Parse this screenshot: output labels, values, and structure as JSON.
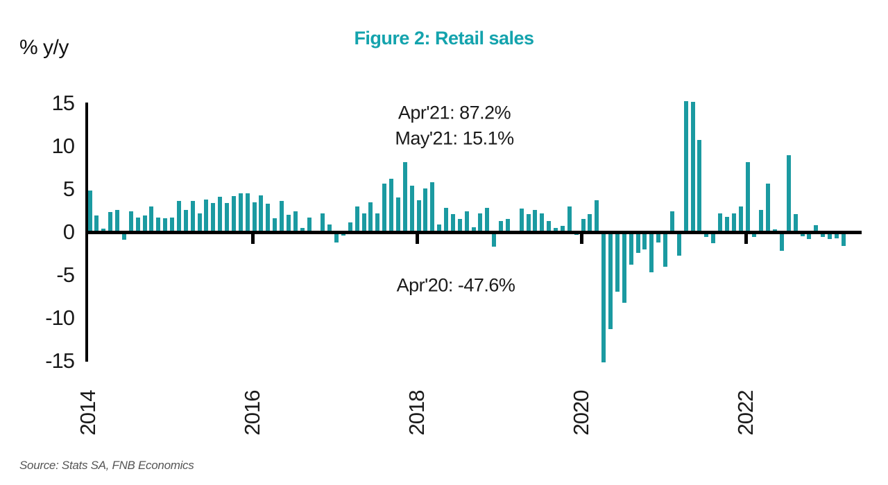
{
  "chart_data": {
    "type": "bar",
    "title": "Figure 2: Retail sales",
    "ylabel": "% y/y",
    "source": "Source: Stats SA, FNB Economics",
    "ylim": [
      -15,
      15
    ],
    "yticks": [
      15,
      10,
      5,
      0,
      -5,
      -10,
      -15
    ],
    "xticks": [
      {
        "label": "2014",
        "month_index": 0
      },
      {
        "label": "2016",
        "month_index": 24
      },
      {
        "label": "2018",
        "month_index": 48
      },
      {
        "label": "2020",
        "month_index": 72
      },
      {
        "label": "2022",
        "month_index": 96
      }
    ],
    "grid": false,
    "legend": "none",
    "bar_color": "#1b9aa1",
    "title_color": "#14a3ad",
    "axis_color": "#000000",
    "x_start": "2014-01",
    "x_end": "2023-03",
    "frequency": "monthly",
    "series": [
      {
        "name": "Retail sales % y/y",
        "values": [
          4.8,
          1.9,
          0.4,
          2.3,
          2.6,
          -0.9,
          2.4,
          1.7,
          1.9,
          3.0,
          1.7,
          1.6,
          1.7,
          3.6,
          2.6,
          3.6,
          2.2,
          3.8,
          3.4,
          4.1,
          3.4,
          4.2,
          4.5,
          4.5,
          3.5,
          4.3,
          3.3,
          1.6,
          3.6,
          2.0,
          2.4,
          0.5,
          1.7,
          0.2,
          2.2,
          0.9,
          -1.2,
          -0.4,
          1.1,
          3.0,
          2.2,
          3.5,
          2.2,
          5.6,
          6.2,
          4.0,
          8.1,
          5.4,
          3.7,
          5.1,
          5.8,
          0.9,
          2.8,
          2.1,
          1.5,
          2.4,
          0.6,
          2.2,
          2.8,
          -1.7,
          1.3,
          1.5,
          0.2,
          2.7,
          2.1,
          2.6,
          2.2,
          1.3,
          0.5,
          0.7,
          3.0,
          -0.3,
          1.5,
          2.1,
          3.7,
          -47.6,
          -11.3,
          -6.9,
          -8.2,
          -3.8,
          -2.4,
          -2.0,
          -4.7,
          -1.2,
          -4.0,
          2.4,
          -2.7,
          87.2,
          15.1,
          10.7,
          -0.6,
          -1.3,
          2.2,
          1.8,
          2.2,
          3.0,
          8.1,
          -0.6,
          2.6,
          5.6,
          0.3,
          -2.2,
          8.9,
          2.1,
          -0.5,
          -0.8,
          0.8,
          -0.6,
          -0.8,
          -0.7,
          -1.6
        ]
      }
    ],
    "annotations": [
      {
        "label": "Apr'21: 87.2%",
        "x": 655,
        "y": 163
      },
      {
        "label": "May'21: 15.1%",
        "x": 655,
        "y": 200
      },
      {
        "label": "Apr'20: -47.6%",
        "x": 657,
        "y": 412
      }
    ]
  }
}
